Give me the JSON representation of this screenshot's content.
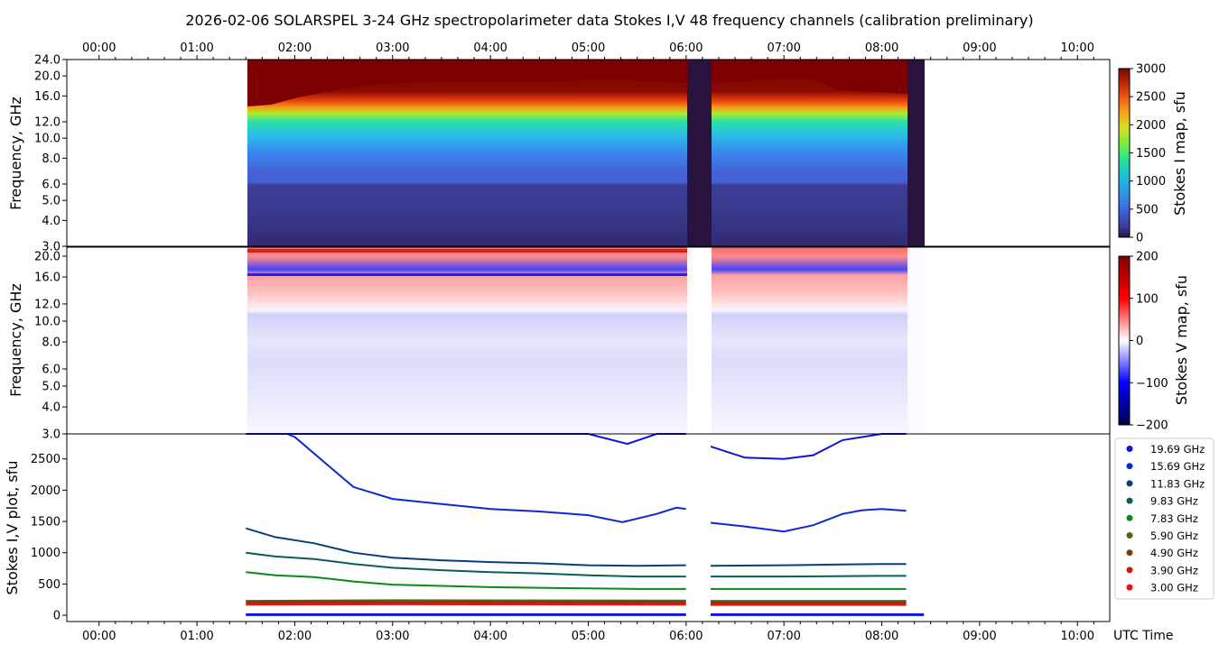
{
  "chart_data": {
    "type": "spectrogram",
    "title": "2026-02-06  SOLARSPEL  3-24 GHz spectropolarimeter data   Stokes I,V   48 frequency channels   (calibration preliminary)",
    "time_ticks": [
      "00:00",
      "01:00",
      "02:00",
      "03:00",
      "04:00",
      "05:00",
      "06:00",
      "07:00",
      "08:00",
      "09:00",
      "10:00"
    ],
    "time_range_hours": [
      -0.33,
      10.33
    ],
    "observation": {
      "start_h": 1.5,
      "end_h": 8.43,
      "gaps": [
        [
          6.0,
          6.25
        ],
        [
          8.25,
          8.43
        ]
      ]
    },
    "xlabel": "UTC Time",
    "panels": [
      {
        "name": "stokes_i_map",
        "type": "heatmap",
        "ylabel": "Frequency, GHz",
        "yscale": "log",
        "ylim": [
          3.0,
          24.0
        ],
        "yticks": [
          "24.0",
          "20.0",
          "16.0",
          "12.0",
          "10.0",
          "8.0",
          "6.0",
          "5.0",
          "4.0",
          "3.0"
        ],
        "colorbar": {
          "label": "Stokes I map, sfu",
          "min": 0,
          "max": 3000,
          "ticks": [
            "3000",
            "2500",
            "2000",
            "1500",
            "1000",
            "500",
            "0"
          ]
        }
      },
      {
        "name": "stokes_v_map",
        "type": "heatmap",
        "ylabel": "Frequency, GHz",
        "yscale": "log",
        "ylim": [
          3.0,
          22.0
        ],
        "yticks": [
          "20.0",
          "16.0",
          "12.0",
          "10.0",
          "8.0",
          "6.0",
          "5.0",
          "4.0",
          "3.0"
        ],
        "colorbar": {
          "label": "Stokes V map, sfu",
          "min": -200,
          "max": 200,
          "ticks": [
            "200",
            "100",
            "0",
            "−100",
            "−200"
          ]
        }
      },
      {
        "name": "stokes_iv_plot",
        "type": "line",
        "ylabel": "Stokes I,V plot, sfu",
        "ylim": [
          -100,
          2900
        ],
        "yticks": [
          "2500",
          "2000",
          "1500",
          "1000",
          "500",
          "0"
        ],
        "series": [
          {
            "name": "19.69 GHz",
            "color": "#1010e0",
            "points": [
              [
                1.5,
                3000
              ],
              [
                3.0,
                3000
              ],
              [
                4.0,
                2980
              ],
              [
                5.0,
                2900
              ],
              [
                5.4,
                2740
              ],
              [
                5.7,
                2900
              ],
              [
                6.0,
                2990
              ],
              [
                6.25,
                2700
              ],
              [
                6.6,
                2520
              ],
              [
                7.0,
                2500
              ],
              [
                7.3,
                2560
              ],
              [
                7.6,
                2800
              ],
              [
                8.0,
                2980
              ],
              [
                8.25,
                2980
              ]
            ]
          },
          {
            "name": "15.69 GHz",
            "color": "#0a2ad0",
            "points": [
              [
                1.92,
                3000
              ],
              [
                2.0,
                2850
              ],
              [
                2.3,
                2450
              ],
              [
                2.6,
                2050
              ],
              [
                3.0,
                1860
              ],
              [
                3.5,
                1780
              ],
              [
                4.0,
                1700
              ],
              [
                4.5,
                1660
              ],
              [
                5.0,
                1600
              ],
              [
                5.35,
                1490
              ],
              [
                5.7,
                1620
              ],
              [
                5.9,
                1720
              ],
              [
                6.0,
                1700
              ],
              [
                6.25,
                1480
              ],
              [
                6.6,
                1420
              ],
              [
                7.0,
                1340
              ],
              [
                7.3,
                1440
              ],
              [
                7.6,
                1620
              ],
              [
                7.8,
                1680
              ],
              [
                8.0,
                1700
              ],
              [
                8.25,
                1670
              ]
            ]
          },
          {
            "name": "11.83 GHz",
            "color": "#0a3f7d",
            "points": [
              [
                1.5,
                1390
              ],
              [
                1.8,
                1250
              ],
              [
                2.2,
                1150
              ],
              [
                2.6,
                1000
              ],
              [
                3.0,
                920
              ],
              [
                3.5,
                880
              ],
              [
                4.0,
                850
              ],
              [
                4.5,
                830
              ],
              [
                5.0,
                800
              ],
              [
                5.5,
                790
              ],
              [
                6.0,
                800
              ],
              [
                6.25,
                790
              ],
              [
                7.0,
                800
              ],
              [
                7.5,
                810
              ],
              [
                8.0,
                820
              ],
              [
                8.25,
                820
              ]
            ]
          },
          {
            "name": "9.83 GHz",
            "color": "#0a5d55",
            "points": [
              [
                1.5,
                1000
              ],
              [
                1.8,
                940
              ],
              [
                2.2,
                900
              ],
              [
                2.6,
                820
              ],
              [
                3.0,
                760
              ],
              [
                3.5,
                720
              ],
              [
                4.0,
                690
              ],
              [
                4.5,
                670
              ],
              [
                5.0,
                640
              ],
              [
                5.5,
                620
              ],
              [
                6.0,
                620
              ],
              [
                6.25,
                620
              ],
              [
                7.0,
                620
              ],
              [
                8.0,
                630
              ],
              [
                8.25,
                630
              ]
            ]
          },
          {
            "name": "7.83 GHz",
            "color": "#0a8a1a",
            "points": [
              [
                1.5,
                690
              ],
              [
                1.8,
                640
              ],
              [
                2.2,
                610
              ],
              [
                2.6,
                540
              ],
              [
                3.0,
                490
              ],
              [
                3.5,
                470
              ],
              [
                4.0,
                450
              ],
              [
                4.5,
                440
              ],
              [
                5.0,
                430
              ],
              [
                5.5,
                420
              ],
              [
                6.0,
                420
              ],
              [
                6.25,
                420
              ],
              [
                7.0,
                420
              ],
              [
                8.0,
                420
              ],
              [
                8.25,
                420
              ]
            ]
          },
          {
            "name": "5.90 GHz",
            "color": "#4a6a0a",
            "points": [
              [
                1.5,
                230
              ],
              [
                3.0,
                240
              ],
              [
                6.0,
                235
              ],
              [
                6.25,
                230
              ],
              [
                8.25,
                230
              ]
            ]
          },
          {
            "name": "4.90 GHz",
            "color": "#7a3a0a",
            "points": [
              [
                1.5,
                210
              ],
              [
                3.0,
                215
              ],
              [
                6.0,
                210
              ],
              [
                6.25,
                205
              ],
              [
                8.25,
                205
              ]
            ]
          },
          {
            "name": "3.90 GHz",
            "color": "#c02010",
            "points": [
              [
                1.5,
                190
              ],
              [
                3.0,
                195
              ],
              [
                6.0,
                190
              ],
              [
                6.25,
                185
              ],
              [
                8.25,
                185
              ]
            ]
          },
          {
            "name": "3.00 GHz",
            "color": "#f01010",
            "points": [
              [
                1.5,
                170
              ],
              [
                3.0,
                175
              ],
              [
                6.0,
                170
              ],
              [
                6.25,
                165
              ],
              [
                8.25,
                165
              ]
            ]
          }
        ]
      }
    ]
  }
}
